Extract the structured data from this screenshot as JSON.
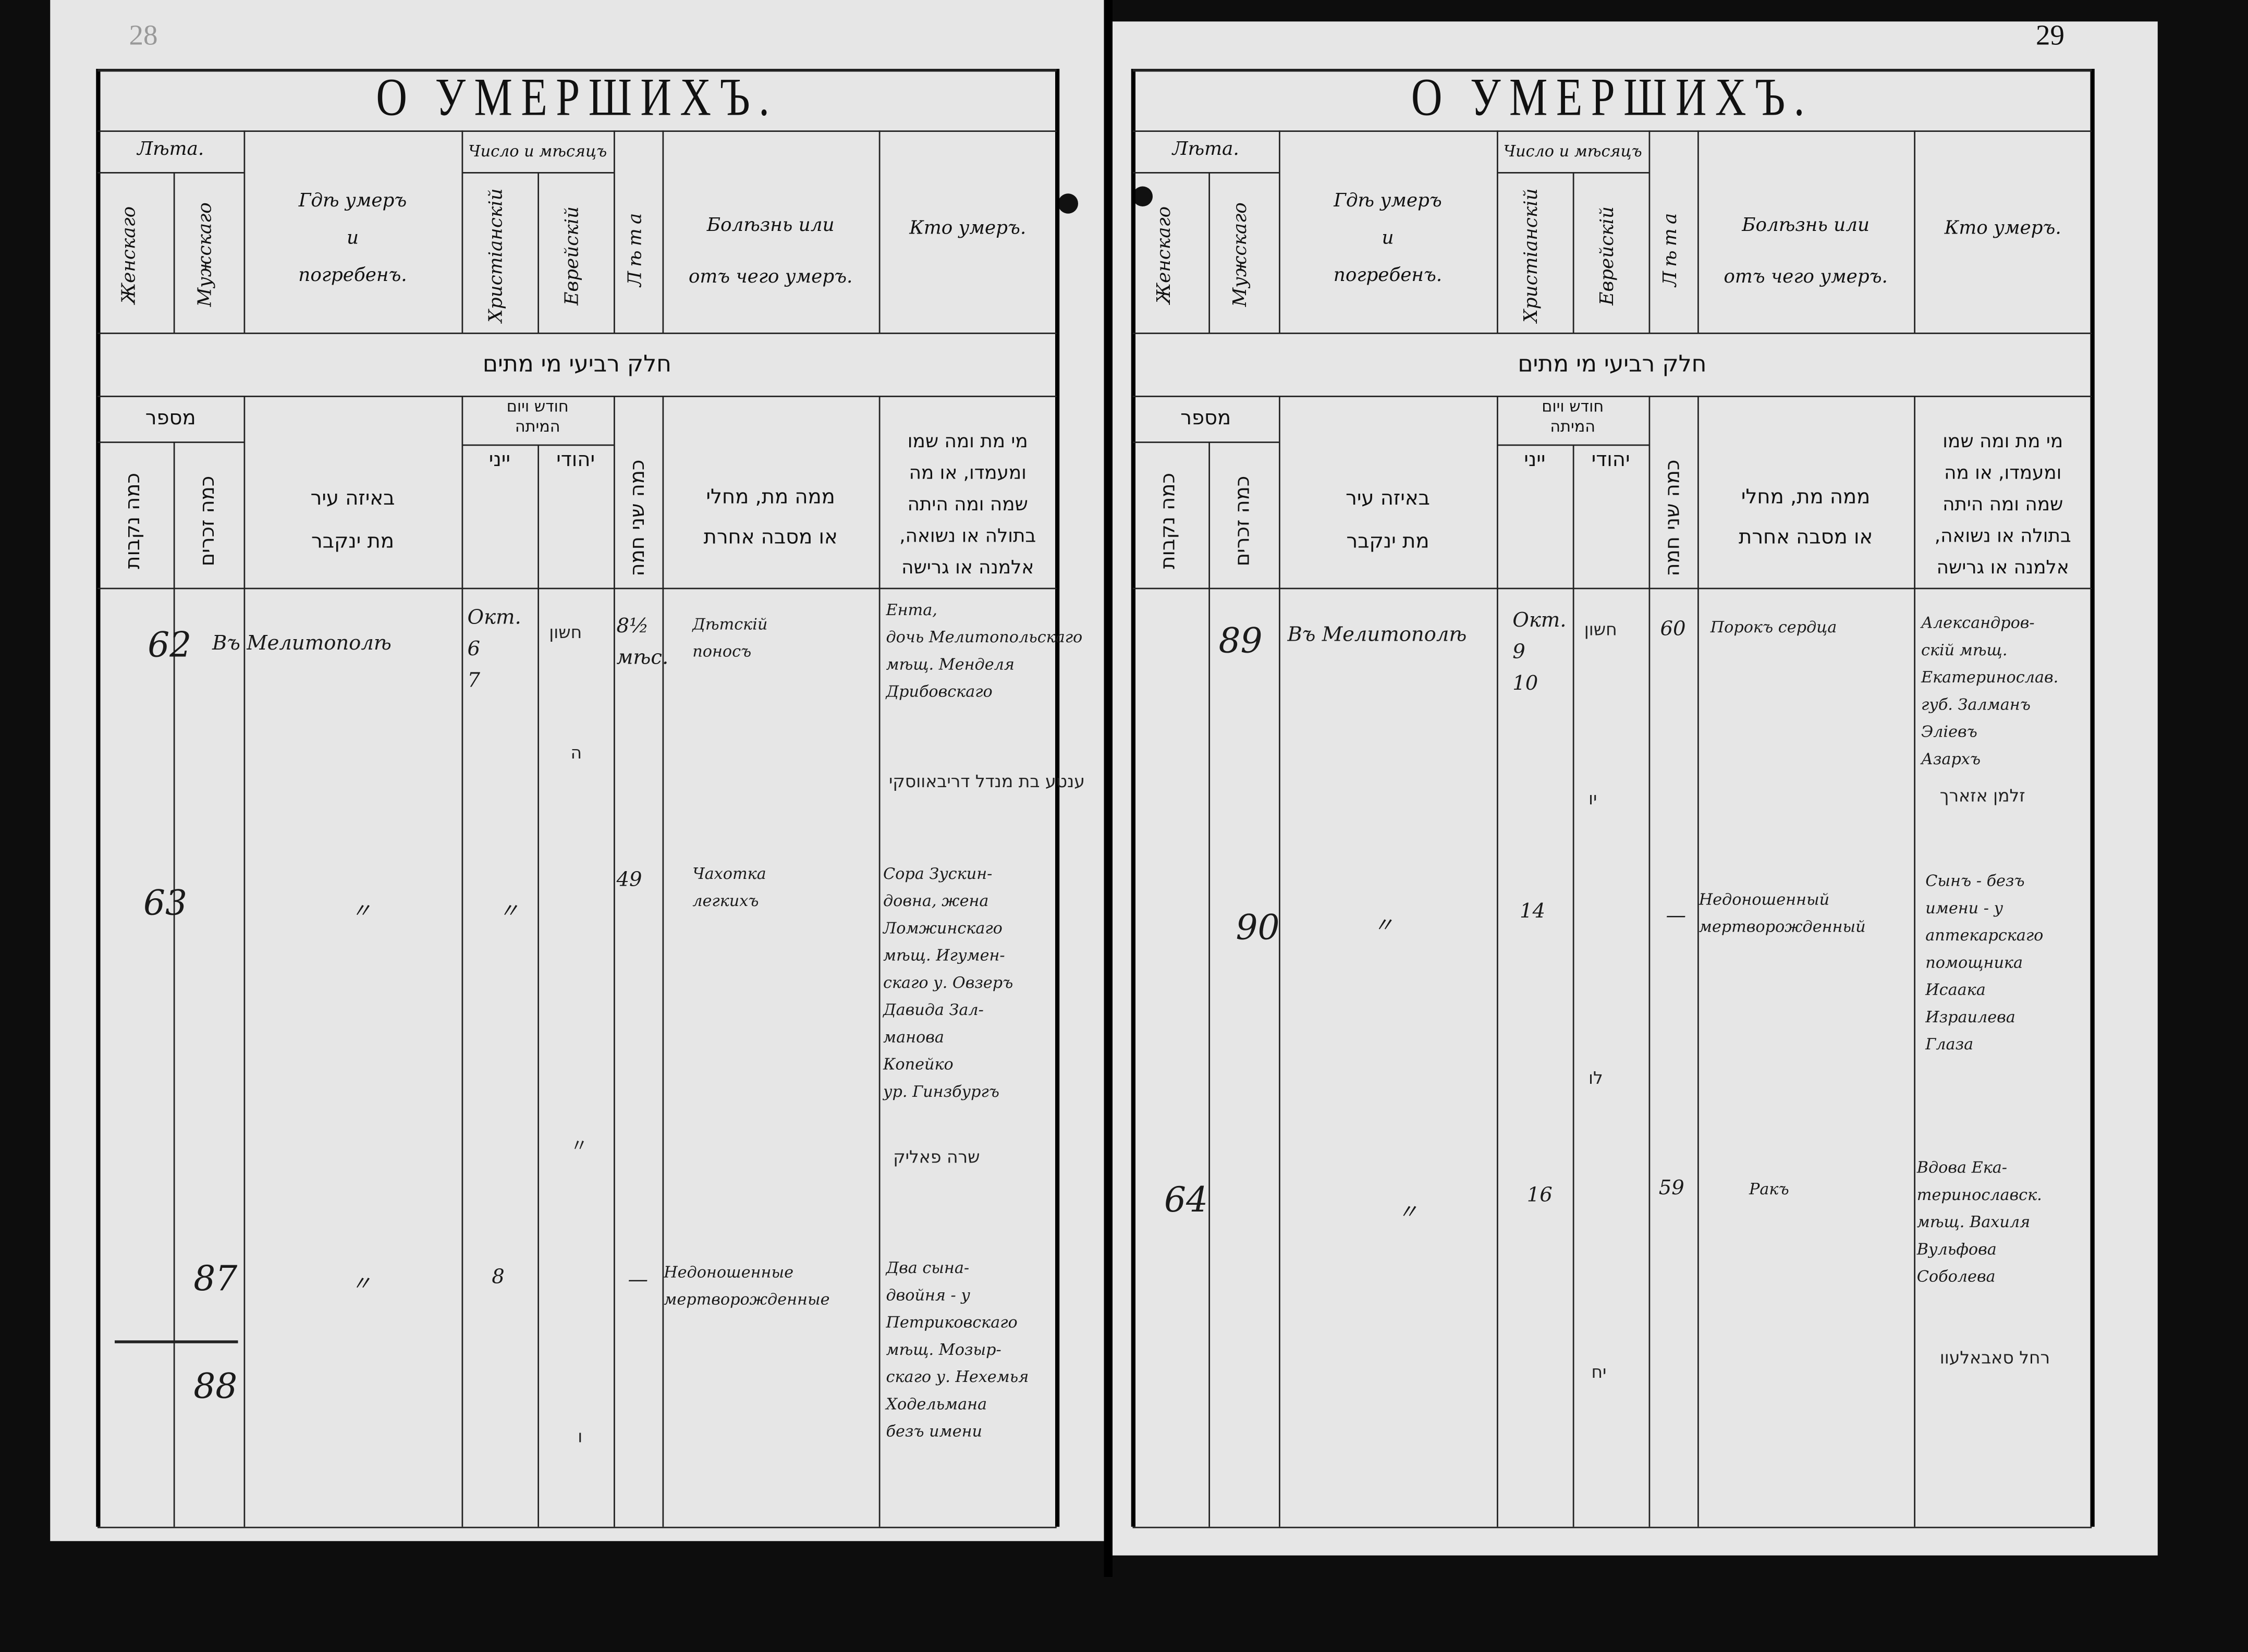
{
  "header": {
    "title": "О УМЕРШИХЪ.",
    "years": "Лѣта.",
    "female": "Женскаго",
    "male": "Мужскаго",
    "where": [
      "Гдѣ умеръ",
      "и",
      "погребенъ."
    ],
    "date": "Число и мѣсяцъ",
    "christian": "Христіанскій",
    "jewish": "Еврейскій",
    "age": "Лѣта",
    "cause": [
      "Болѣзнь или",
      "отъ чего умеръ."
    ],
    "who": "Кто умеръ."
  },
  "hebrew_header": {
    "section": "חלק רביעי מי מתים",
    "number": "מספר",
    "female": "כמה נקבות",
    "male": "כמה זכרים",
    "where": [
      "באיזה עיר",
      "מת ינקבר"
    ],
    "month_day": [
      "חודש ויום",
      "המיתה"
    ],
    "gentile": "ייני",
    "jewish": "יהודי",
    "age": "כמה שני חמה",
    "cause": [
      "ממה מת, מחלי",
      "או מסבה אחרת"
    ],
    "who": [
      "מי מת ומה שמו",
      "ומעמדו, או מה",
      "שמה ומה היתה",
      "בתולה או נשואה,",
      "אלמנה או גרישה"
    ]
  },
  "left_page": {
    "page_number": "28",
    "entries": [
      {
        "female_no": "62",
        "place": "Въ Мелитополѣ",
        "date": [
          "Окт.",
          "6",
          "7"
        ],
        "hebrew_month": "חשון",
        "hebrew_day": "ה",
        "age": [
          "8½",
          "мѣс."
        ],
        "cause": [
          "Дѣтскій",
          "поносъ"
        ],
        "who": [
          "Ента,",
          "дочь Мелитопольскаго",
          "мѣщ. Менделя",
          "Дрибовскаго"
        ],
        "hebrew_name": "ענטע בת מנדל דריבאווסקי"
      },
      {
        "female_no": "63",
        "place": "〃",
        "date": [
          "〃"
        ],
        "hebrew_day": "〃",
        "age": [
          "49"
        ],
        "cause": [
          "Чахотка",
          "легкихъ"
        ],
        "who": [
          "Сора Зускин-",
          "довна, жена",
          "Ломжинскаго",
          "мѣщ. Игумен-",
          "скаго у. Овзеръ",
          "Давида Зал-",
          "манова",
          "Копейко",
          "ур. Гинзбургъ"
        ],
        "hebrew_name": "שרה פאליק"
      },
      {
        "male_no": "87",
        "place": "〃",
        "date": [
          "8"
        ],
        "age": [
          "—"
        ],
        "cause": [
          "Недоношенные",
          "мертворожденные"
        ],
        "who": [
          "Два сына-",
          "двойня - у",
          "Петриковскаго",
          "мѣщ. Мозыр-",
          "скаго у. Нехемья",
          "Ходельмана",
          "безъ имени"
        ],
        "hebrew_day": "ו"
      },
      {
        "male_no": "88"
      }
    ]
  },
  "right_page": {
    "page_number": "29",
    "entries": [
      {
        "male_no": "89",
        "place": "Въ Мелитополѣ",
        "date": [
          "Окт.",
          "9",
          "10"
        ],
        "hebrew_month": "חשון",
        "hebrew_day": "יו",
        "age": [
          "60"
        ],
        "cause": [
          "Порокъ сердца"
        ],
        "who": [
          "Александров-",
          "скій мѣщ.",
          "Екатеринослав.",
          "губ. Залманъ",
          "Эліевъ",
          "Азархъ"
        ],
        "hebrew_name": "זלמן אזארך"
      },
      {
        "male_no": "90",
        "place": "〃",
        "date": [
          "14"
        ],
        "hebrew_day": "לו",
        "age": [
          "—"
        ],
        "cause": [
          "Недоношенный",
          "мертворожденный"
        ],
        "who": [
          "Сынъ - безъ",
          "имени - у",
          "аптекарскаго",
          "помощника",
          "Исаака",
          "Израилева",
          "Глаза"
        ]
      },
      {
        "female_no": "64",
        "place": "〃",
        "date": [
          "16"
        ],
        "hebrew_day": "יח",
        "age": [
          "59"
        ],
        "cause": [
          "Ракъ"
        ],
        "who": [
          "Вдова Ека-",
          "теринославск.",
          "мѣщ. Вахиля",
          "Вульфова",
          "Соболева"
        ],
        "hebrew_name": "רחל סאבאלעוו"
      }
    ]
  },
  "colors": {
    "paper": "#e6e6e6",
    "background": "#0d0d0d",
    "ink": "#1a1a1a"
  }
}
